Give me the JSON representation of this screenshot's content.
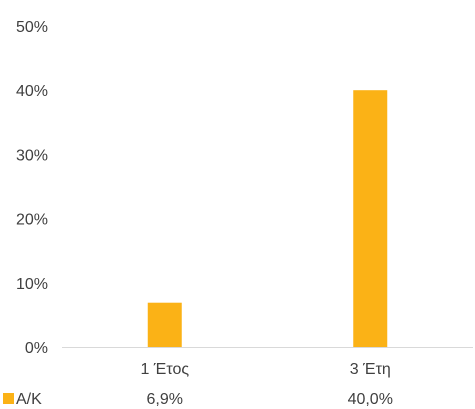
{
  "chart_data": {
    "type": "bar",
    "categories": [
      "1 Έτος",
      "3 Έτη"
    ],
    "series": [
      {
        "name": "Α/Κ",
        "values": [
          6.9,
          40.0
        ],
        "value_labels": [
          "6,9%",
          "40,0%"
        ],
        "color": "#FBB216"
      }
    ],
    "y_tick_labels": [
      "0%",
      "10%",
      "20%",
      "30%",
      "40%",
      "50%"
    ],
    "ylim": [
      0,
      50
    ],
    "grid": false,
    "legend": "data-table-below"
  }
}
